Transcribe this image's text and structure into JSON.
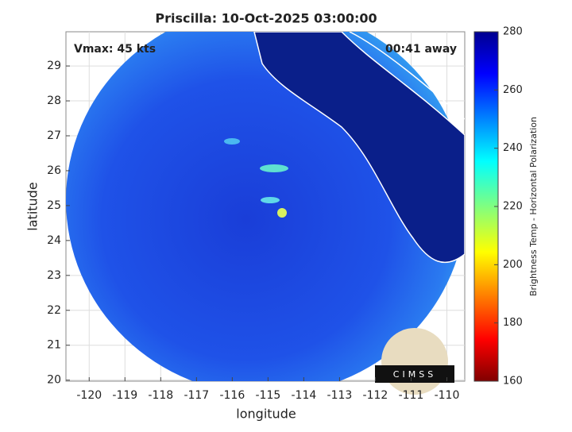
{
  "title": "Priscilla: 10-Oct-2025 03:00:00",
  "annotations": {
    "vmax": "Vmax: 45 kts",
    "away": "00:41 away"
  },
  "map": {
    "xlabel": "longitude",
    "ylabel": "latitude",
    "xlim": [
      -120.65,
      -109.5
    ],
    "ylim": [
      19.97,
      29.98
    ],
    "xticks": [
      -120,
      -119,
      -118,
      -117,
      -116,
      -115,
      -114,
      -113,
      -112,
      -111,
      -110
    ],
    "yticks": [
      20,
      21,
      22,
      23,
      24,
      25,
      26,
      27,
      28,
      29
    ],
    "grid": true
  },
  "colorbar": {
    "label": "Brightness Temp - Horizontal Polarization",
    "lim": [
      160,
      280
    ],
    "ticks": [
      160,
      180,
      200,
      220,
      240,
      260,
      280
    ]
  },
  "logo": "CIMSS"
}
